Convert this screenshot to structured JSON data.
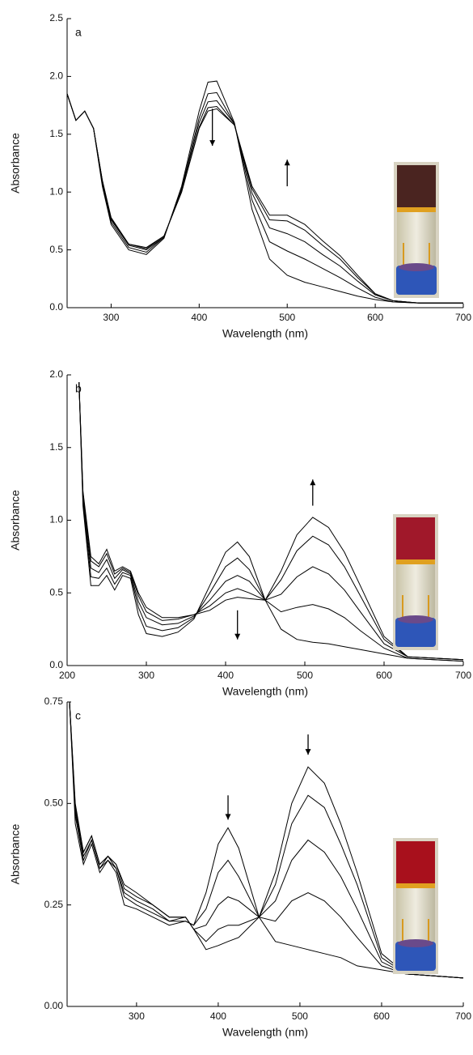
{
  "chart_data": [
    {
      "type": "line",
      "panel_label": "a",
      "xlabel": "Wavelength (nm)",
      "ylabel": "Absorbance",
      "xlim": [
        250,
        700
      ],
      "ylim": [
        0,
        2.5
      ],
      "xticks": [
        300,
        400,
        500,
        600,
        700
      ],
      "yticks": [
        {
          "value": 0,
          "label": "0.0"
        },
        0.5,
        {
          "value": 1,
          "label": "1.0"
        },
        1.5,
        {
          "value": 2,
          "label": "2.0"
        },
        2.5
      ],
      "x": [
        250,
        260,
        270,
        280,
        290,
        300,
        320,
        340,
        360,
        380,
        400,
        410,
        420,
        440,
        460,
        480,
        500,
        520,
        540,
        560,
        580,
        600,
        620,
        650,
        700
      ],
      "series": [
        {
          "color": "#000000",
          "values": [
            1.85,
            1.62,
            1.7,
            1.55,
            1.05,
            0.72,
            0.5,
            0.46,
            0.6,
            1.05,
            1.7,
            1.95,
            1.96,
            1.6,
            0.85,
            0.42,
            0.28,
            0.22,
            0.18,
            0.14,
            0.1,
            0.07,
            0.05,
            0.04,
            0.04
          ]
        },
        {
          "color": "#000000",
          "values": [
            1.85,
            1.62,
            1.7,
            1.55,
            1.07,
            0.74,
            0.52,
            0.48,
            0.61,
            1.03,
            1.64,
            1.85,
            1.86,
            1.59,
            0.93,
            0.57,
            0.49,
            0.42,
            0.34,
            0.26,
            0.17,
            0.09,
            0.05,
            0.04,
            0.04
          ]
        },
        {
          "color": "#000000",
          "values": [
            1.85,
            1.62,
            1.7,
            1.55,
            1.09,
            0.76,
            0.54,
            0.5,
            0.61,
            1.02,
            1.6,
            1.78,
            1.79,
            1.59,
            0.99,
            0.69,
            0.64,
            0.57,
            0.46,
            0.36,
            0.23,
            0.11,
            0.06,
            0.04,
            0.04
          ]
        },
        {
          "color": "#000000",
          "values": [
            1.85,
            1.62,
            1.7,
            1.55,
            1.1,
            0.77,
            0.55,
            0.51,
            0.62,
            1.0,
            1.56,
            1.73,
            1.74,
            1.58,
            1.03,
            0.76,
            0.75,
            0.67,
            0.54,
            0.42,
            0.26,
            0.12,
            0.06,
            0.04,
            0.04
          ]
        },
        {
          "color": "#000000",
          "values": [
            1.85,
            1.62,
            1.7,
            1.55,
            1.1,
            0.78,
            0.55,
            0.52,
            0.62,
            1.0,
            1.55,
            1.7,
            1.72,
            1.58,
            1.05,
            0.8,
            0.8,
            0.72,
            0.58,
            0.45,
            0.28,
            0.12,
            0.06,
            0.04,
            0.04
          ]
        }
      ]
    },
    {
      "type": "line",
      "panel_label": "b",
      "xlabel": "Wavelength (nm)",
      "ylabel": "Absorbance",
      "xlim": [
        200,
        700
      ],
      "ylim": [
        0,
        2
      ],
      "xticks": [
        200,
        300,
        400,
        500,
        600,
        700
      ],
      "yticks": [
        {
          "value": 0,
          "label": "0.0"
        },
        0.5,
        {
          "value": 1,
          "label": "1.0"
        },
        1.5,
        {
          "value": 2,
          "label": "2.0"
        }
      ],
      "x": [
        215,
        220,
        230,
        240,
        250,
        260,
        270,
        280,
        290,
        300,
        320,
        340,
        360,
        380,
        400,
        415,
        430,
        450,
        470,
        490,
        510,
        530,
        550,
        570,
        600,
        630,
        700
      ],
      "series": [
        {
          "color": "#000000",
          "values": [
            1.95,
            1.1,
            0.55,
            0.55,
            0.62,
            0.52,
            0.62,
            0.6,
            0.35,
            0.22,
            0.2,
            0.23,
            0.32,
            0.55,
            0.78,
            0.85,
            0.75,
            0.45,
            0.25,
            0.18,
            0.16,
            0.15,
            0.13,
            0.11,
            0.08,
            0.05,
            0.03
          ]
        },
        {
          "color": "#000000",
          "values": [
            1.95,
            1.13,
            0.61,
            0.6,
            0.67,
            0.56,
            0.64,
            0.62,
            0.4,
            0.27,
            0.24,
            0.26,
            0.33,
            0.5,
            0.68,
            0.74,
            0.66,
            0.45,
            0.37,
            0.4,
            0.42,
            0.39,
            0.33,
            0.24,
            0.12,
            0.05,
            0.03
          ]
        },
        {
          "color": "#000000",
          "values": [
            1.95,
            1.16,
            0.67,
            0.64,
            0.73,
            0.6,
            0.66,
            0.63,
            0.44,
            0.33,
            0.28,
            0.29,
            0.34,
            0.45,
            0.58,
            0.62,
            0.58,
            0.45,
            0.49,
            0.61,
            0.68,
            0.63,
            0.52,
            0.37,
            0.15,
            0.06,
            0.04
          ]
        },
        {
          "color": "#000000",
          "values": [
            1.95,
            1.19,
            0.72,
            0.68,
            0.77,
            0.63,
            0.67,
            0.64,
            0.48,
            0.37,
            0.31,
            0.32,
            0.35,
            0.41,
            0.5,
            0.53,
            0.5,
            0.45,
            0.59,
            0.79,
            0.89,
            0.83,
            0.68,
            0.48,
            0.18,
            0.06,
            0.04
          ]
        },
        {
          "color": "#000000",
          "values": [
            1.95,
            1.2,
            0.75,
            0.7,
            0.8,
            0.65,
            0.68,
            0.65,
            0.5,
            0.4,
            0.33,
            0.33,
            0.35,
            0.38,
            0.45,
            0.47,
            0.46,
            0.45,
            0.65,
            0.9,
            1.02,
            0.95,
            0.78,
            0.55,
            0.2,
            0.06,
            0.04
          ]
        }
      ]
    },
    {
      "type": "line",
      "panel_label": "c",
      "xlabel": "Wavelength (nm)",
      "ylabel": "Absorbance",
      "xlim": [
        215,
        700
      ],
      "ylim": [
        0,
        0.75
      ],
      "xticks": [
        300,
        400,
        500,
        600,
        700
      ],
      "yticks": [
        {
          "value": 0,
          "label": "0.00"
        },
        0.25,
        {
          "value": 0.5,
          "label": "0.50"
        },
        0.75
      ],
      "x": [
        218,
        225,
        235,
        245,
        255,
        265,
        275,
        285,
        300,
        320,
        340,
        360,
        370,
        385,
        400,
        412,
        425,
        450,
        470,
        490,
        510,
        530,
        550,
        570,
        600,
        630,
        700
      ],
      "series": [
        {
          "color": "#000000",
          "values": [
            0.75,
            0.45,
            0.35,
            0.4,
            0.33,
            0.36,
            0.33,
            0.25,
            0.24,
            0.22,
            0.2,
            0.21,
            0.2,
            0.28,
            0.4,
            0.44,
            0.39,
            0.22,
            0.16,
            0.15,
            0.14,
            0.13,
            0.12,
            0.1,
            0.09,
            0.08,
            0.07
          ]
        },
        {
          "color": "#000000",
          "values": [
            0.75,
            0.47,
            0.36,
            0.41,
            0.34,
            0.36,
            0.34,
            0.27,
            0.25,
            0.23,
            0.21,
            0.21,
            0.2,
            0.24,
            0.33,
            0.36,
            0.32,
            0.22,
            0.21,
            0.26,
            0.28,
            0.26,
            0.22,
            0.17,
            0.1,
            0.08,
            0.07
          ]
        },
        {
          "color": "#000000",
          "values": [
            0.75,
            0.48,
            0.37,
            0.41,
            0.34,
            0.37,
            0.34,
            0.28,
            0.26,
            0.24,
            0.21,
            0.22,
            0.19,
            0.2,
            0.25,
            0.27,
            0.26,
            0.22,
            0.26,
            0.36,
            0.41,
            0.38,
            0.32,
            0.24,
            0.11,
            0.08,
            0.07
          ]
        },
        {
          "color": "#000000",
          "values": [
            0.75,
            0.49,
            0.38,
            0.42,
            0.35,
            0.37,
            0.35,
            0.29,
            0.27,
            0.25,
            0.22,
            0.22,
            0.19,
            0.16,
            0.19,
            0.2,
            0.2,
            0.22,
            0.3,
            0.45,
            0.52,
            0.49,
            0.4,
            0.3,
            0.12,
            0.08,
            0.07
          ]
        },
        {
          "color": "#000000",
          "values": [
            0.75,
            0.5,
            0.38,
            0.42,
            0.35,
            0.37,
            0.35,
            0.3,
            0.28,
            0.25,
            0.22,
            0.22,
            0.19,
            0.14,
            0.15,
            0.16,
            0.17,
            0.22,
            0.33,
            0.5,
            0.59,
            0.55,
            0.45,
            0.33,
            0.13,
            0.08,
            0.07
          ]
        }
      ]
    }
  ]
}
